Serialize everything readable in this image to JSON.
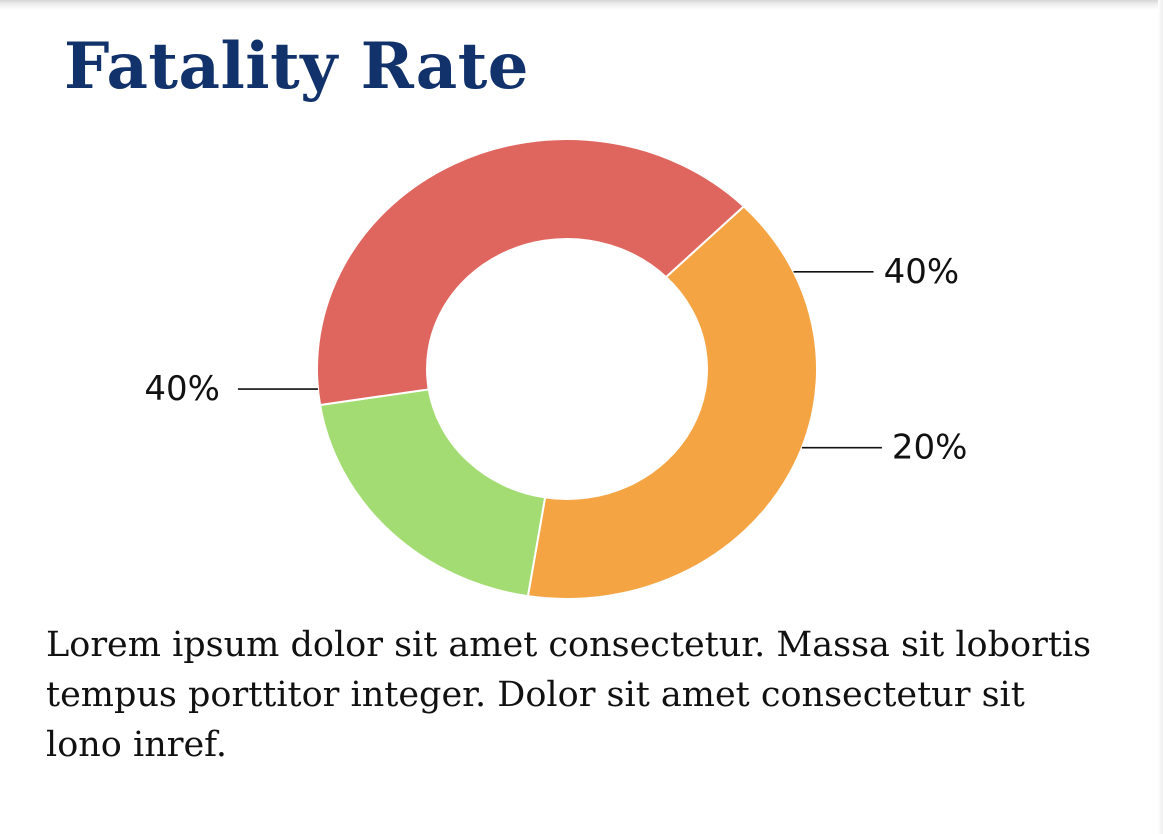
{
  "title": "Fatality Rate",
  "body_text": "Lorem ipsum dolor sit amet consectetur. Massa sit lobortis tempus porttitor integer. Dolor sit amet consectetur sit lono inref.",
  "colors": {
    "title": "#12326b",
    "text": "#111111",
    "background": "#ffffff"
  },
  "chart_data": {
    "type": "pie",
    "variant": "donut",
    "title": "",
    "slices": [
      {
        "value": 40,
        "label": "40%",
        "color": "#f4a443"
      },
      {
        "value": 20,
        "label": "20%",
        "color": "#a3dc72"
      },
      {
        "value": 40,
        "label": "40%",
        "color": "#df665e"
      }
    ]
  }
}
